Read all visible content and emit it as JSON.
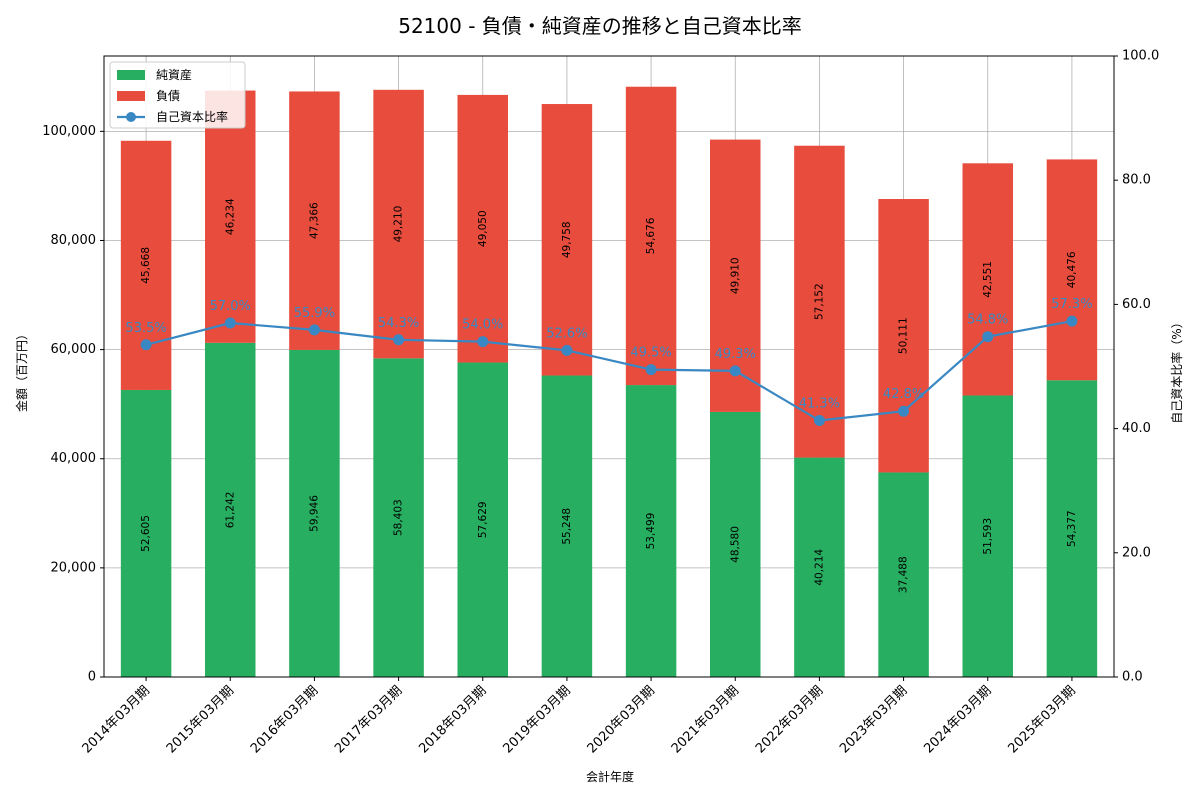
{
  "chart_data": {
    "type": "bar",
    "stacked": true,
    "title": "52100 - 負債・純資産の推移と自己資本比率",
    "xlabel": "会計年度",
    "ylabel": "金額（百万円）",
    "ylabel_right": "自己資本比率（%）",
    "categories": [
      "2014年03月期",
      "2015年03月期",
      "2016年03月期",
      "2017年03月期",
      "2018年03月期",
      "2019年03月期",
      "2020年03月期",
      "2021年03月期",
      "2022年03月期",
      "2023年03月期",
      "2024年03月期",
      "2025年03月期"
    ],
    "series": [
      {
        "name": "純資産",
        "color": "#27ae60",
        "values": [
          52605,
          61242,
          59946,
          58403,
          57629,
          55248,
          53499,
          48580,
          40214,
          37488,
          51593,
          54377
        ],
        "labels": [
          "52,605",
          "61,242",
          "59,946",
          "58,403",
          "57,629",
          "55,248",
          "53,499",
          "48,580",
          "40,214",
          "37,488",
          "51,593",
          "54,377"
        ]
      },
      {
        "name": "負債",
        "color": "#e74c3c",
        "values": [
          45668,
          46234,
          47366,
          49210,
          49050,
          49758,
          54676,
          49910,
          57152,
          50111,
          42551,
          40476
        ],
        "labels": [
          "45,668",
          "46,234",
          "47,366",
          "49,210",
          "49,050",
          "49,758",
          "54,676",
          "49,910",
          "57,152",
          "50,111",
          "42,551",
          "40,476"
        ]
      }
    ],
    "line_series": {
      "name": "自己資本比率",
      "color": "#3a88c3",
      "values": [
        53.5,
        57.0,
        55.9,
        54.3,
        54.0,
        52.6,
        49.5,
        49.3,
        41.3,
        42.8,
        54.8,
        57.3
      ],
      "labels": [
        "53.5%",
        "57.0%",
        "55.9%",
        "54.3%",
        "54.0%",
        "52.6%",
        "49.5%",
        "49.3%",
        "41.3%",
        "42.8%",
        "54.8%",
        "57.3%"
      ]
    },
    "ylim": [
      0,
      113808
    ],
    "ylim_right": [
      0,
      100
    ],
    "yticks": [
      0,
      20000,
      40000,
      60000,
      80000,
      100000
    ],
    "ytick_labels": [
      "0",
      "20,000",
      "40,000",
      "60,000",
      "80,000",
      "100,000"
    ],
    "yticks_right": [
      0,
      20,
      40,
      60,
      80,
      100
    ],
    "ytick_labels_right": [
      "0.0",
      "20.0",
      "40.0",
      "60.0",
      "80.0",
      "100.0"
    ],
    "grid": true,
    "legend_position": "top-left"
  }
}
